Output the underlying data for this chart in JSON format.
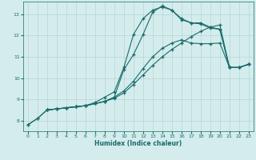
{
  "xlabel": "Humidex (Indice chaleur)",
  "bg_color": "#d4ecec",
  "grid_color": "#b0d0d0",
  "line_color": "#1a6b6b",
  "xlim": [
    -0.5,
    23.5
  ],
  "ylim": [
    7.5,
    13.6
  ],
  "xticks": [
    0,
    1,
    2,
    3,
    4,
    5,
    6,
    7,
    8,
    9,
    10,
    11,
    12,
    13,
    14,
    15,
    16,
    17,
    18,
    19,
    20,
    21,
    22,
    23
  ],
  "yticks": [
    8,
    9,
    10,
    11,
    12,
    13
  ],
  "line1_x": [
    0,
    1,
    2,
    3,
    4,
    5,
    6,
    7,
    8,
    9,
    10,
    11,
    12,
    13,
    14,
    15,
    16,
    17,
    18,
    19,
    20,
    21,
    22,
    23
  ],
  "line1_y": [
    7.8,
    8.1,
    8.5,
    8.55,
    8.6,
    8.65,
    8.7,
    8.8,
    8.9,
    9.05,
    9.3,
    9.7,
    10.15,
    10.6,
    11.0,
    11.35,
    11.65,
    11.95,
    12.2,
    12.4,
    12.5,
    10.5,
    10.5,
    10.65
  ],
  "line2_x": [
    0,
    1,
    2,
    3,
    4,
    5,
    6,
    7,
    8,
    9,
    10,
    11,
    12,
    13,
    14,
    15,
    16,
    17,
    18,
    19,
    20,
    21,
    22,
    23
  ],
  "line2_y": [
    7.8,
    8.1,
    8.5,
    8.55,
    8.6,
    8.65,
    8.7,
    8.85,
    9.1,
    9.35,
    10.5,
    12.05,
    12.8,
    13.2,
    13.35,
    13.2,
    12.75,
    12.6,
    12.6,
    12.4,
    12.3,
    10.5,
    10.5,
    10.65
  ],
  "line3_x": [
    2,
    3,
    4,
    5,
    6,
    7,
    8,
    9,
    10,
    11,
    12,
    13,
    14,
    15,
    16,
    17,
    18,
    19,
    20,
    21,
    22,
    23
  ],
  "line3_y": [
    8.5,
    8.55,
    8.6,
    8.65,
    8.7,
    8.8,
    8.9,
    9.1,
    10.4,
    11.1,
    12.05,
    13.1,
    13.4,
    13.2,
    12.8,
    12.6,
    12.55,
    12.35,
    12.3,
    10.5,
    10.5,
    10.65
  ],
  "line4_x": [
    2,
    3,
    4,
    5,
    6,
    7,
    8,
    9,
    10,
    11,
    12,
    13,
    14,
    15,
    16,
    17,
    18,
    19,
    20,
    21,
    22,
    23
  ],
  "line4_y": [
    8.5,
    8.55,
    8.6,
    8.65,
    8.7,
    8.8,
    8.9,
    9.1,
    9.4,
    9.85,
    10.45,
    11.0,
    11.4,
    11.65,
    11.8,
    11.65,
    11.62,
    11.62,
    11.65,
    10.5,
    10.5,
    10.65
  ]
}
